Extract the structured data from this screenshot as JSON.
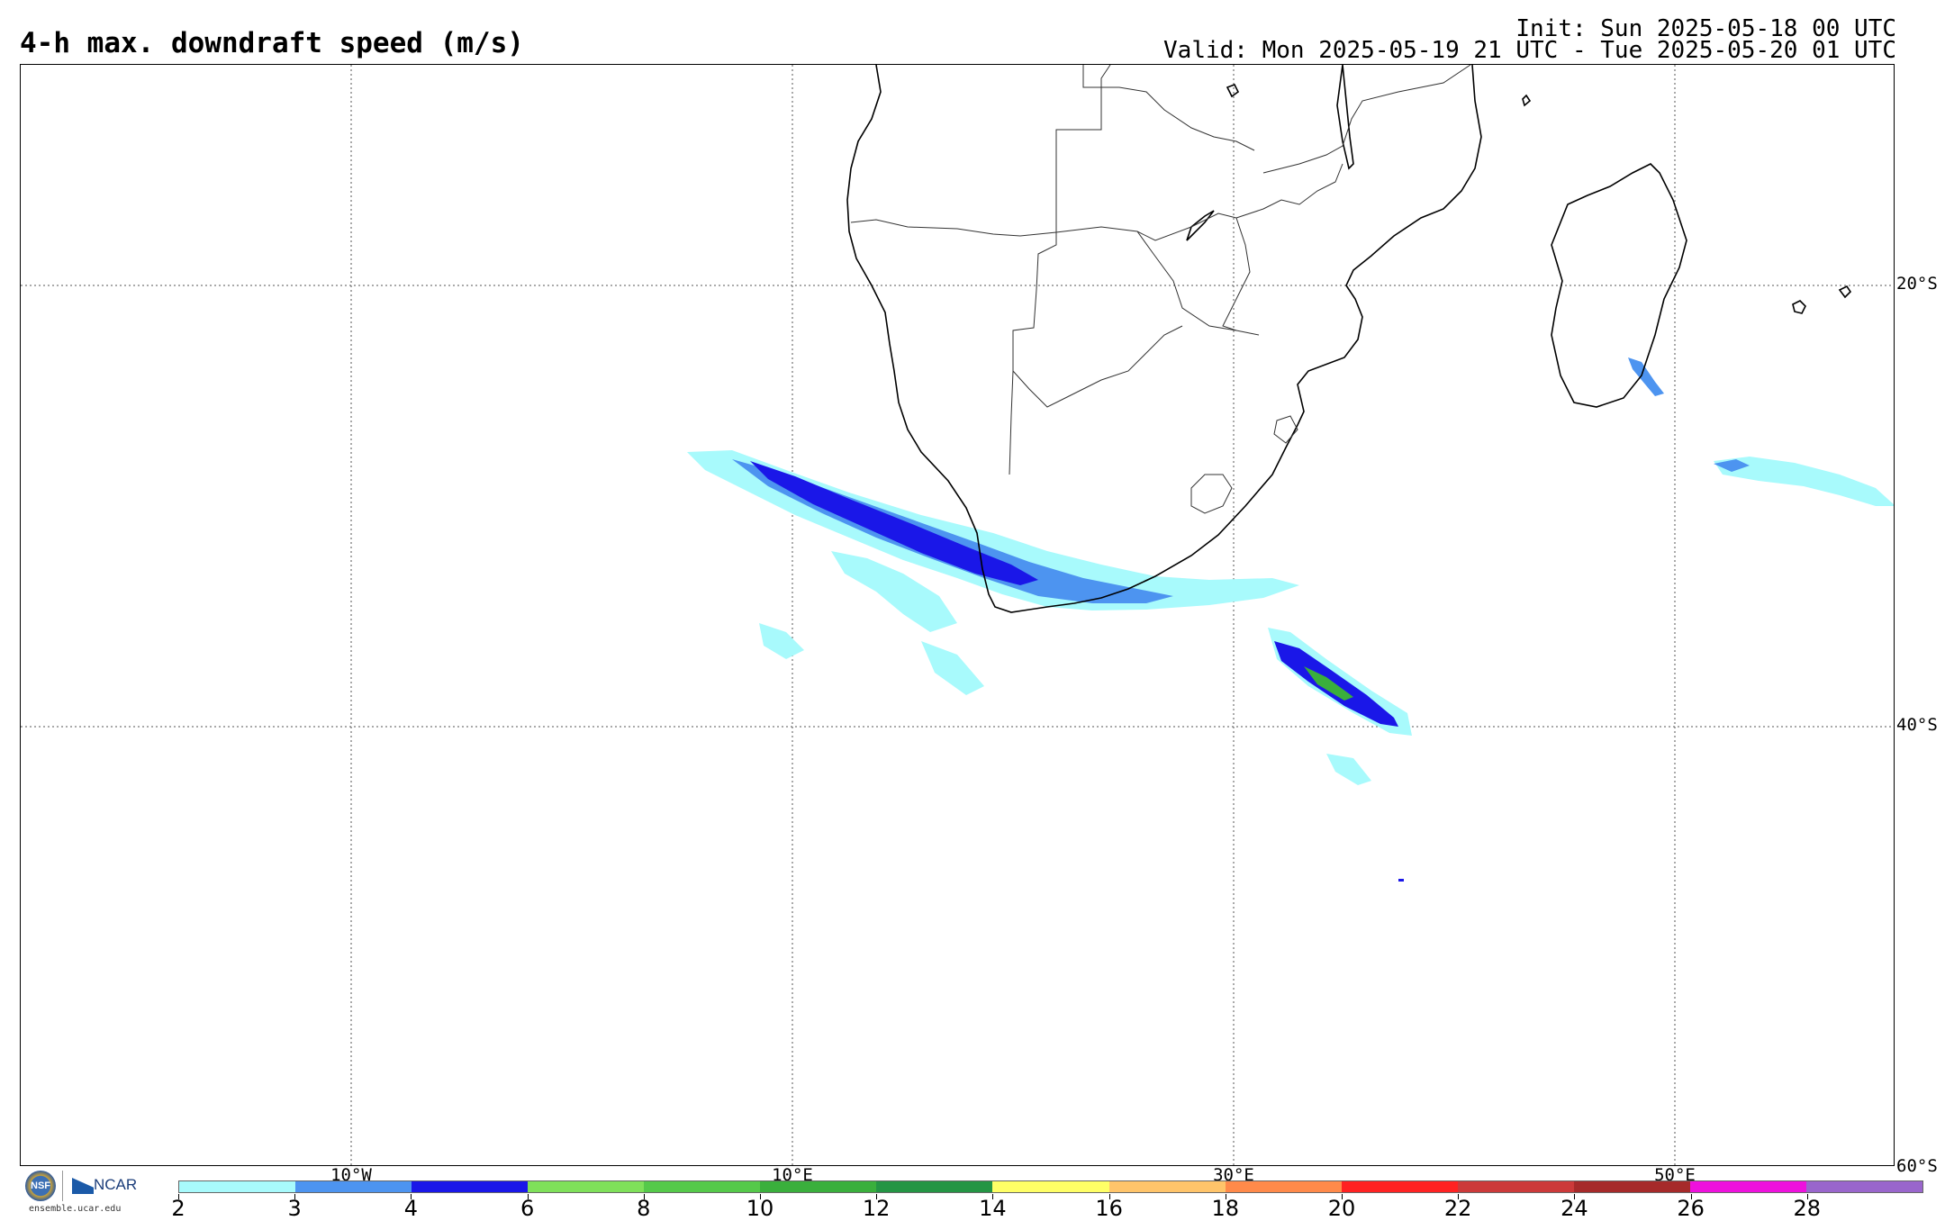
{
  "title": "4-h max. downdraft speed (m/s)",
  "init": "Init: Sun 2025-05-18 00 UTC",
  "valid": "Valid: Mon 2025-05-19 21 UTC - Tue 2025-05-20 01 UTC",
  "map": {
    "lat_labels": [
      "20°S",
      "40°S",
      "60°S"
    ],
    "lon_labels": [
      "10°W",
      "10°E",
      "30°E",
      "50°E"
    ]
  },
  "logo": {
    "nsf": "NSF",
    "ncar": "NCAR",
    "url": "ensemble.ucar.edu"
  },
  "colorbar": {
    "colors": [
      "#a8fafc",
      "#4d94f0",
      "#1a17e8",
      "#7fe05a",
      "#55c94a",
      "#3aaf3c",
      "#249544",
      "#ffff66",
      "#ffc46a",
      "#ff8a4a",
      "#ff2222",
      "#cc3a3a",
      "#a62a2a",
      "#ee11dd",
      "#9966cc"
    ],
    "labels": [
      "2",
      "3",
      "4",
      "6",
      "8",
      "10",
      "12",
      "14",
      "16",
      "18",
      "20",
      "22",
      "24",
      "26",
      "28"
    ]
  }
}
